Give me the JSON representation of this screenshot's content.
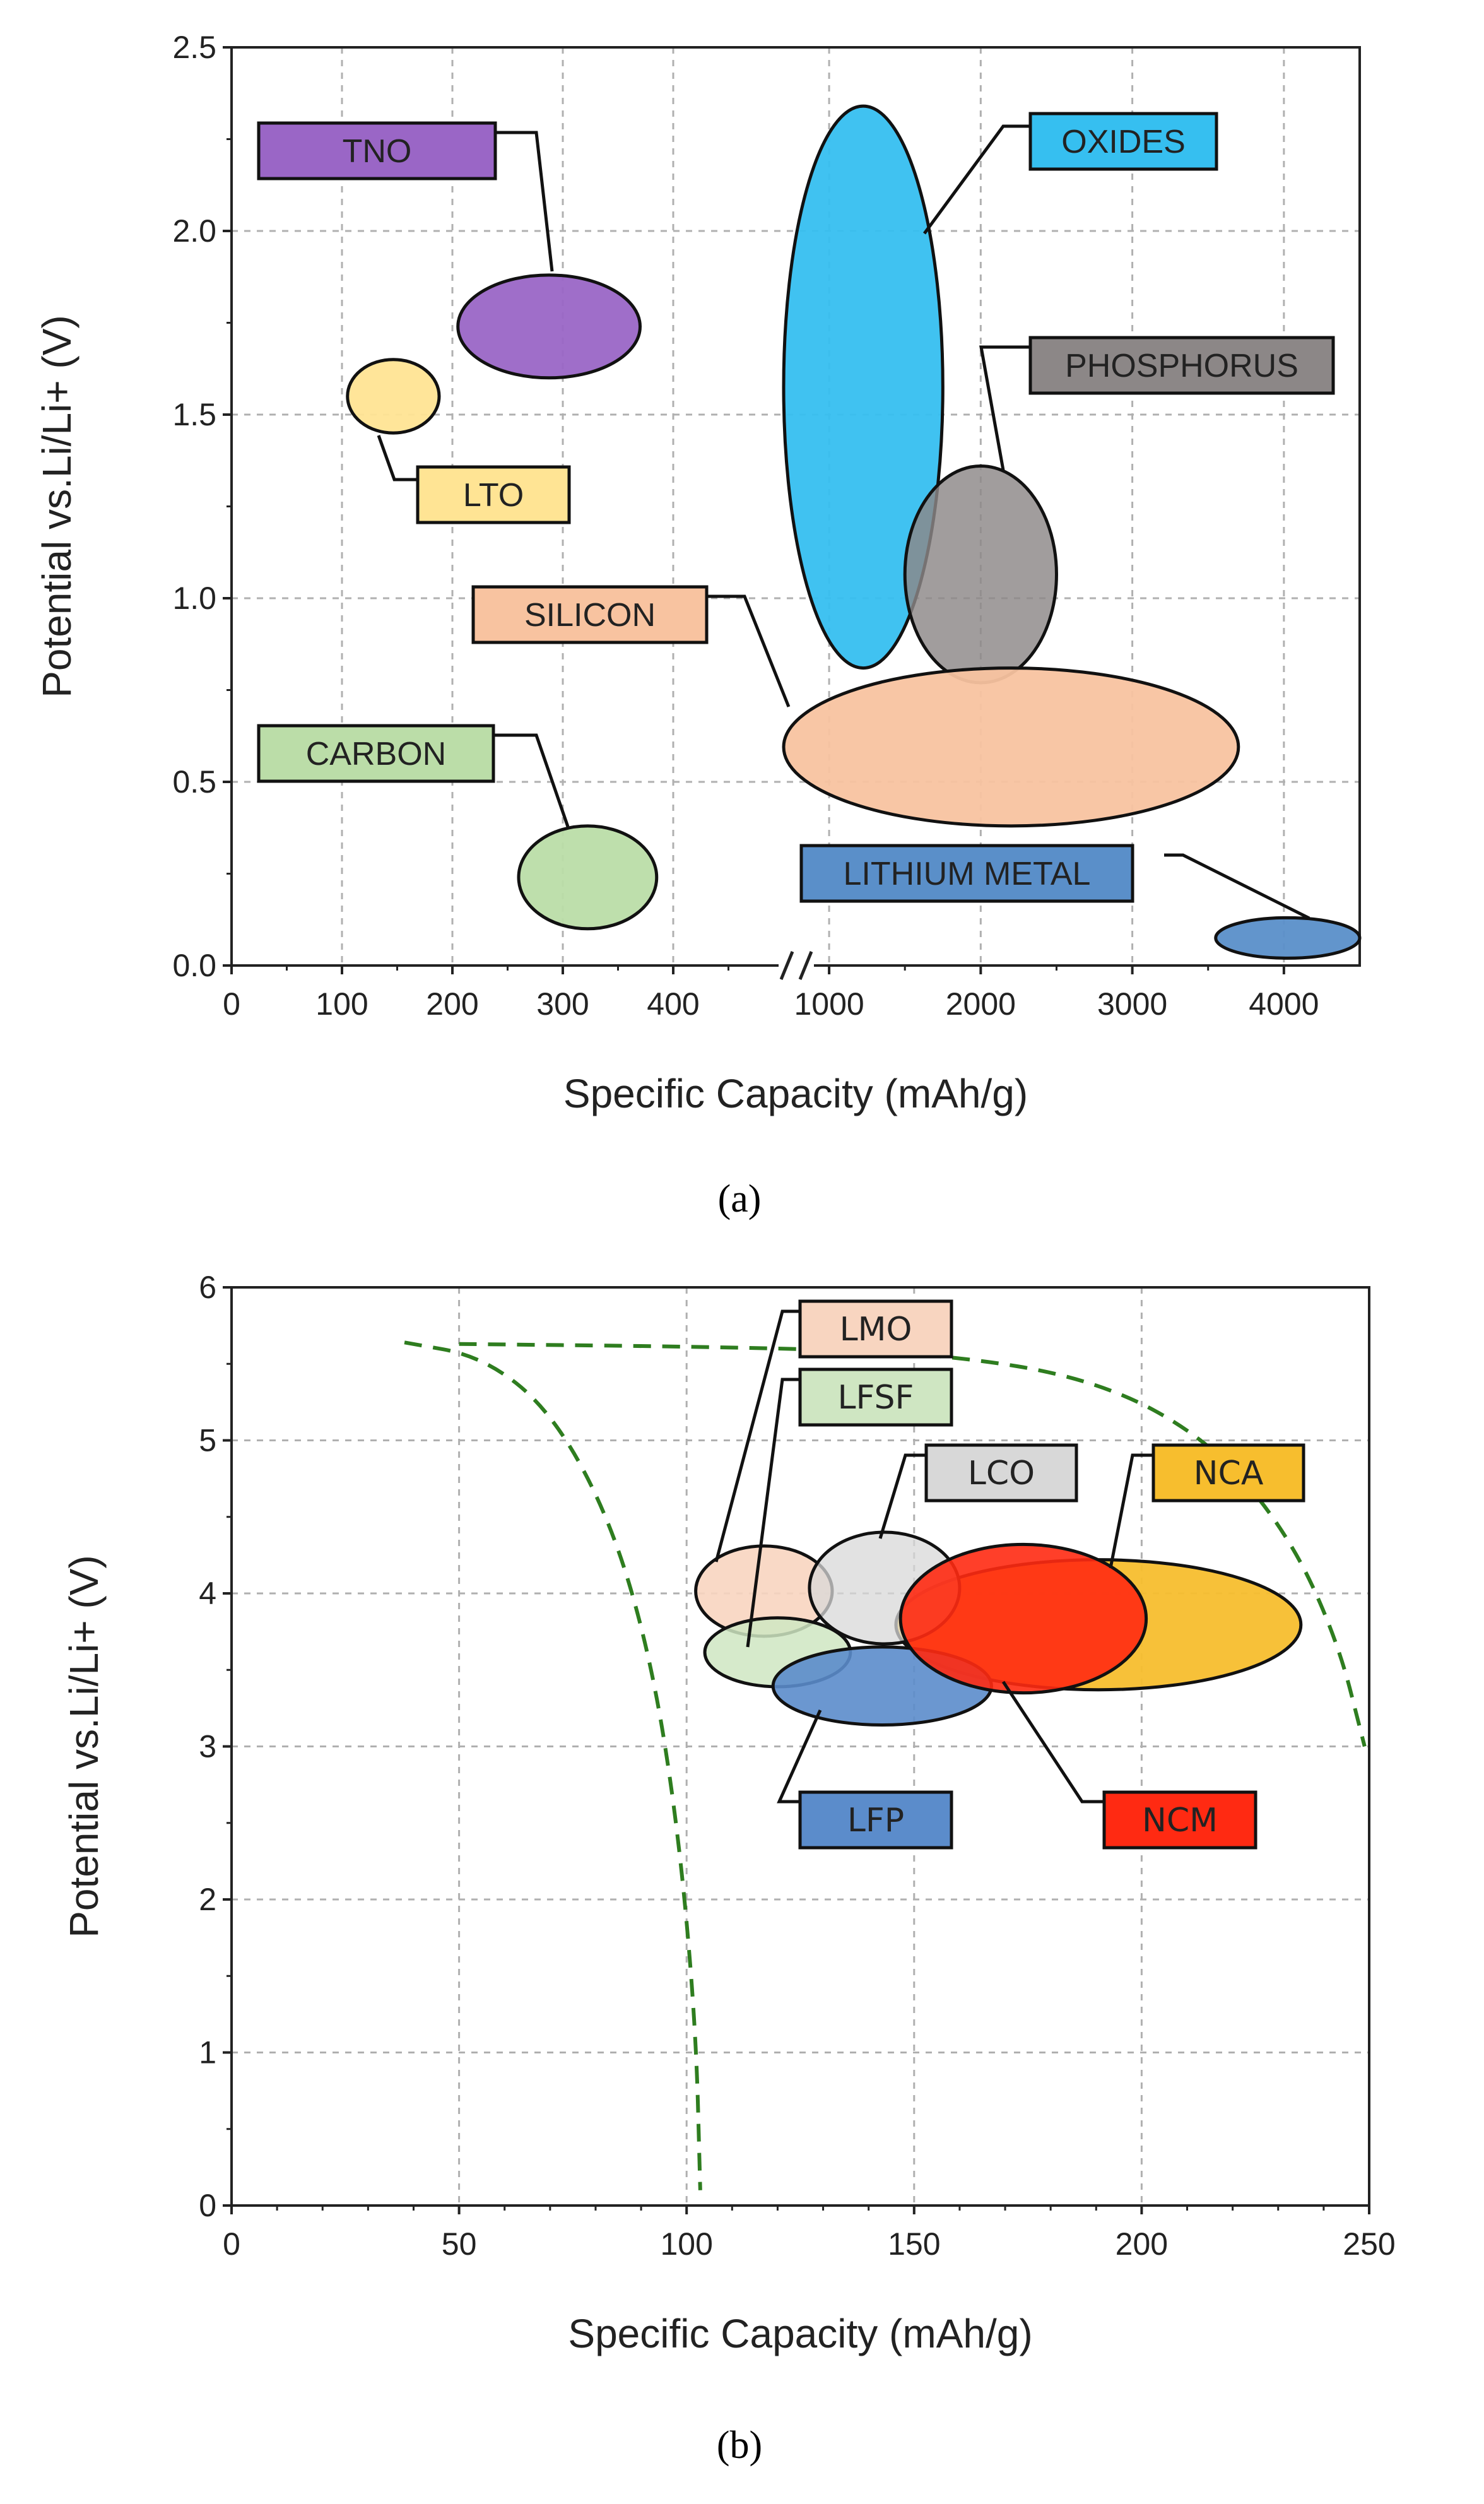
{
  "chart_data": [
    {
      "type": "bubble",
      "panel_label": "(a)",
      "xlabel": "Specific Capacity (mAh/g)",
      "ylabel": "Potential vs.Li/Li+ (V)",
      "ylim": [
        0,
        2.5
      ],
      "yticks": [
        "0.0",
        "0.5",
        "1.0",
        "1.5",
        "2.0",
        "2.5"
      ],
      "y_tick_values": [
        0,
        0.5,
        1.0,
        1.5,
        2.0,
        2.5
      ],
      "x_segments": [
        {
          "range": [
            0,
            500
          ],
          "ticks": [
            "0",
            "100",
            "200",
            "300",
            "400"
          ],
          "tick_values": [
            0,
            100,
            200,
            300,
            400
          ]
        },
        {
          "range": [
            700,
            4500
          ],
          "ticks": [
            "1000",
            "2000",
            "3000",
            "4000"
          ],
          "tick_values": [
            1000,
            2000,
            3000,
            4000
          ]
        }
      ],
      "axis_break": true,
      "grid": true,
      "series": [
        {
          "name": "TNO",
          "x_center": 290,
          "x_span": [
            205,
            370
          ],
          "y_center": 1.74,
          "y_span": [
            1.6,
            1.88
          ],
          "color": "#9a66c6"
        },
        {
          "name": "LTO",
          "x_center": 148,
          "x_span": [
            105,
            188
          ],
          "y_center": 1.55,
          "y_span": [
            1.45,
            1.65
          ],
          "color": "#ffe494"
        },
        {
          "name": "CARBON",
          "x_center": 325,
          "x_span": [
            260,
            385
          ],
          "y_center": 0.24,
          "y_span": [
            0.1,
            0.38
          ],
          "color": "#bbdda8"
        },
        {
          "name": "OXIDES",
          "x_center": 1140,
          "x_span": [
            600,
            1750
          ],
          "y_center": 1.58,
          "y_span": [
            0.81,
            2.34
          ],
          "color": "#36bff0"
        },
        {
          "name": "PHOSPHORUS",
          "x_center": 2020,
          "x_span": [
            1500,
            2500
          ],
          "y_center": 1.06,
          "y_span": [
            0.77,
            1.36
          ],
          "color": "#8c8787"
        },
        {
          "name": "SILICON",
          "x_center": 2200,
          "x_span": [
            700,
            3700
          ],
          "y_center": 0.6,
          "y_span": [
            0.38,
            0.81
          ],
          "color": "#f8c3a0"
        },
        {
          "name": "LITHIUM METAL",
          "x_center": 4000,
          "x_span": [
            3550,
            4500
          ],
          "y_center": 0.08,
          "y_span": [
            0.02,
            0.13
          ],
          "color": "#5a8fc9"
        }
      ]
    },
    {
      "type": "bubble",
      "panel_label": "(b)",
      "xlabel": "Specific Capacity (mAh/g)",
      "ylabel": "Potential vs.Li/Li+ (V)",
      "xlim": [
        0,
        250
      ],
      "ylim": [
        0,
        6
      ],
      "xticks": [
        "0",
        "50",
        "100",
        "150",
        "200",
        "250"
      ],
      "x_tick_values": [
        0,
        50,
        100,
        150,
        200,
        250
      ],
      "yticks": [
        "0",
        "1",
        "2",
        "3",
        "4",
        "5",
        "6"
      ],
      "y_tick_values": [
        0,
        1,
        2,
        3,
        4,
        5,
        6
      ],
      "grid": true,
      "series": [
        {
          "name": "LMO",
          "x_center": 117,
          "x_span": [
            102,
            132
          ],
          "y_center": 4.02,
          "y_span": [
            3.72,
            4.31
          ],
          "color": "#f8d5c0"
        },
        {
          "name": "LFSF",
          "x_center": 120,
          "x_span": [
            104,
            136
          ],
          "y_center": 3.62,
          "y_span": [
            3.39,
            3.84
          ],
          "color": "#cfe6c2"
        },
        {
          "name": "LCO",
          "x_center": 144,
          "x_span": [
            127,
            160
          ],
          "y_center": 4.05,
          "y_span": [
            3.67,
            4.4
          ],
          "color": "#d8d8d8"
        },
        {
          "name": "NCA",
          "x_center": 190,
          "x_span": [
            146,
            235
          ],
          "y_center": 3.8,
          "y_span": [
            3.37,
            4.22
          ],
          "color": "#f7be2e"
        },
        {
          "name": "NCM",
          "x_center": 174,
          "x_span": [
            147,
            201
          ],
          "y_center": 3.82,
          "y_span": [
            3.35,
            4.32
          ],
          "color": "#ff2a12"
        },
        {
          "name": "LFP",
          "x_center": 143,
          "x_span": [
            119,
            167
          ],
          "y_center": 3.4,
          "y_span": [
            3.14,
            3.65
          ],
          "color": "#5b8ccb"
        }
      ],
      "boundary_curves": [
        {
          "name": "",
          "style": "dashed",
          "color": "#2e7d1f",
          "points": [
            [
              38,
              5.64
            ],
            [
              55,
              5.55
            ],
            [
              70,
              5.2
            ],
            [
              83,
              4.5
            ],
            [
              92,
              3.6
            ],
            [
              98,
              2.5
            ],
            [
              102,
              1.2
            ],
            [
              103,
              0.1
            ]
          ]
        },
        {
          "name": "",
          "style": "dashed",
          "color": "#2e7d1f",
          "points": [
            [
              50,
              5.63
            ],
            [
              110,
              5.61
            ],
            [
              155,
              5.57
            ],
            [
              190,
              5.4
            ],
            [
              215,
              5.0
            ],
            [
              232,
              4.4
            ],
            [
              243,
              3.7
            ],
            [
              249,
              3.0
            ]
          ]
        }
      ]
    }
  ]
}
